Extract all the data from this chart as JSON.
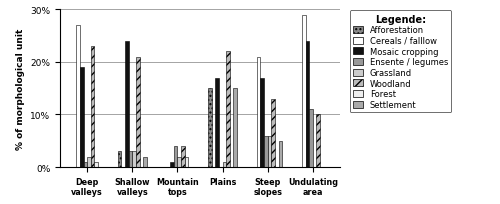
{
  "categories": [
    "Deep\nvalleys",
    "Shallow\nvalleys",
    "Mountain\ntops",
    "Plains",
    "Steep\nslopes",
    "Undulating\narea"
  ],
  "land_use": [
    "Afforestation",
    "Cereals / falllow",
    "Mosaic cropping",
    "Ensente / legumes",
    "Grassland",
    "Woodland",
    "Forest",
    "Settlement"
  ],
  "values": {
    "Afforestation": [
      0,
      3,
      0,
      15,
      0,
      0
    ],
    "Cereals / falllow": [
      27,
      0,
      0,
      0,
      21,
      29
    ],
    "Mosaic cropping": [
      19,
      24,
      1,
      17,
      17,
      24
    ],
    "Ensente / legumes": [
      1,
      3,
      4,
      0,
      6,
      11
    ],
    "Grassland": [
      2,
      3,
      2,
      1,
      6,
      0
    ],
    "Woodland": [
      23,
      21,
      4,
      22,
      13,
      10
    ],
    "Forest": [
      1,
      0,
      2,
      0,
      0,
      0
    ],
    "Settlement": [
      0,
      2,
      0,
      15,
      5,
      0
    ]
  },
  "hatch_map": {
    "Afforestation": "....",
    "Cereals / falllow": "",
    "Mosaic cropping": "",
    "Ensente / legumes": "",
    "Grassland": "",
    "Woodland": "////",
    "Forest": "",
    "Settlement": ""
  },
  "color_map": {
    "Afforestation": "#888888",
    "Cereals / falllow": "#ffffff",
    "Mosaic cropping": "#111111",
    "Ensente / legumes": "#999999",
    "Grassland": "#cccccc",
    "Woodland": "#bbbbbb",
    "Forest": "#eeeeee",
    "Settlement": "#aaaaaa"
  },
  "legend_marker": {
    "Afforestation": "dotted_square",
    "Cereals / falllow": "open_square",
    "Mosaic cropping": "filled_square",
    "Ensente / legumes": "gray_square",
    "Grassland": "light_square",
    "Woodland": "hatched_square",
    "Forest": "open_square2",
    "Settlement": "med_square"
  },
  "ylabel": "% of morphological unit",
  "ylim": [
    0,
    30
  ],
  "yticks": [
    0,
    10,
    20,
    30
  ],
  "yticklabels": [
    "0%",
    "10%",
    "20%",
    "30%"
  ],
  "legend_title": "Legende:",
  "bar_width": 0.08,
  "figsize": [
    5.0,
    2.05
  ],
  "dpi": 100
}
